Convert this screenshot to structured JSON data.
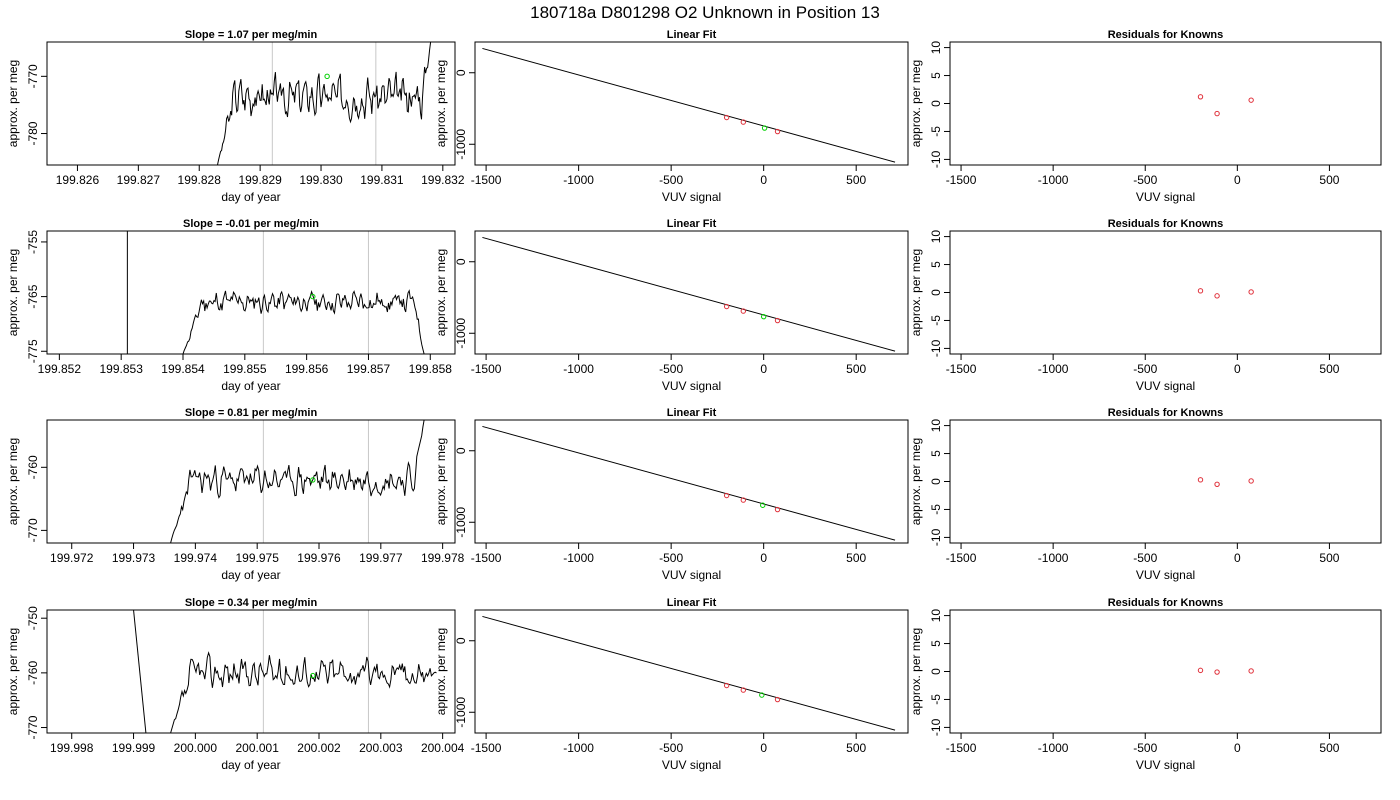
{
  "page_title": "180718a     D801298   O2 Unknown in Position  13",
  "chart_data": [
    {
      "type": "line",
      "panel": "timeseries",
      "title": "Slope =  1.07  per meg/min",
      "xlabel": "day of year",
      "ylabel": "approx. per meg",
      "xlim": [
        199.8255,
        199.8322
      ],
      "ylim": [
        -785.5,
        -764.0
      ],
      "xticks": [
        199.826,
        199.827,
        199.828,
        199.829,
        199.83,
        199.831,
        199.832
      ],
      "xticklabels": [
        "199.826",
        "199.827",
        "199.828",
        "199.829",
        "199.830",
        "199.831",
        "199.832"
      ],
      "yticks": [
        -780,
        -770
      ],
      "yticklabels": [
        "-780",
        "-770"
      ],
      "vlines": [
        199.8292,
        199.8309
      ],
      "series": [
        {
          "x_start": 199.8283,
          "x_end": 199.8318,
          "base": -773.5,
          "start": -785.5,
          "end": -764.0,
          "noise": 2.2,
          "seed": 3
        }
      ],
      "highlight": [
        {
          "x": 199.8301,
          "y": -770.0,
          "color": "#00d000"
        }
      ]
    },
    {
      "type": "scatter",
      "panel": "fit",
      "title": "Linear Fit",
      "xlabel": "VUV signal",
      "ylabel": "approx. per meg",
      "xlim": [
        -1560,
        780
      ],
      "ylim": [
        -1290,
        430
      ],
      "xticks": [
        -1500,
        -1000,
        -500,
        0,
        500
      ],
      "xticklabels": [
        "-1500",
        "-1000",
        "-500",
        "0",
        "500"
      ],
      "yticks": [
        0,
        -1000
      ],
      "yticklabels": [
        "0",
        "-1000"
      ],
      "fit_line": [
        [
          -1520,
          340
        ],
        [
          710,
          -1250
        ]
      ],
      "points": [
        {
          "x": -200,
          "y": -626,
          "color": "#e0303a"
        },
        {
          "x": -110,
          "y": -690,
          "color": "#e0303a"
        },
        {
          "x": 75,
          "y": -822,
          "color": "#e0303a"
        },
        {
          "x": 5,
          "y": -773,
          "color": "#00d000"
        }
      ]
    },
    {
      "type": "scatter",
      "panel": "residuals",
      "title": "Residuals for Knowns",
      "xlabel": "VUV signal",
      "ylabel": "approx. per meg",
      "xlim": [
        -1560,
        780
      ],
      "ylim": [
        -11,
        11
      ],
      "xticks": [
        -1500,
        -1000,
        -500,
        0,
        500
      ],
      "xticklabels": [
        "-1500",
        "-1000",
        "-500",
        "0",
        "500"
      ],
      "yticks": [
        -10,
        -5,
        0,
        5,
        10
      ],
      "yticklabels": [
        "-10",
        "-5",
        "0",
        "5",
        "10"
      ],
      "points": [
        {
          "x": -200,
          "y": 1.2,
          "color": "#e0303a"
        },
        {
          "x": -110,
          "y": -1.8,
          "color": "#e0303a"
        },
        {
          "x": 75,
          "y": 0.6,
          "color": "#e0303a"
        }
      ]
    },
    {
      "type": "line",
      "panel": "timeseries",
      "title": "Slope =  -0.01  per meg/min",
      "xlabel": "day of year",
      "ylabel": "approx. per meg",
      "xlim": [
        199.8518,
        199.8584
      ],
      "ylim": [
        -775.5,
        -753.0
      ],
      "xticks": [
        199.852,
        199.853,
        199.854,
        199.855,
        199.856,
        199.857,
        199.858
      ],
      "xticklabels": [
        "199.852",
        "199.853",
        "199.854",
        "199.855",
        "199.856",
        "199.857",
        "199.858"
      ],
      "yticks": [
        -775,
        -765,
        -755
      ],
      "yticklabels": [
        "-775",
        "-765",
        "-755"
      ],
      "vlines": [
        199.8553,
        199.857
      ],
      "series": [
        {
          "x_start": 199.854,
          "x_end": 199.8579,
          "base": -766.0,
          "start": -775.5,
          "end": -775.5,
          "noise": 1.4,
          "seed": 11
        }
      ],
      "extra_lines": [
        [
          [
            199.8531,
            -753.0
          ],
          [
            199.8531,
            -775.5
          ]
        ]
      ],
      "highlight": [
        {
          "x": 199.8561,
          "y": -765.0,
          "color": "#00d000"
        }
      ]
    },
    {
      "type": "scatter",
      "panel": "fit",
      "title": "Linear Fit",
      "xlabel": "VUV signal",
      "ylabel": "approx. per meg",
      "xlim": [
        -1560,
        780
      ],
      "ylim": [
        -1290,
        430
      ],
      "xticks": [
        -1500,
        -1000,
        -500,
        0,
        500
      ],
      "xticklabels": [
        "-1500",
        "-1000",
        "-500",
        "0",
        "500"
      ],
      "yticks": [
        0,
        -1000
      ],
      "yticklabels": [
        "0",
        "-1000"
      ],
      "fit_line": [
        [
          -1520,
          340
        ],
        [
          710,
          -1250
        ]
      ],
      "points": [
        {
          "x": -200,
          "y": -626,
          "color": "#e0303a"
        },
        {
          "x": -110,
          "y": -690,
          "color": "#e0303a"
        },
        {
          "x": 75,
          "y": -822,
          "color": "#e0303a"
        },
        {
          "x": 0,
          "y": -768,
          "color": "#00d000"
        }
      ]
    },
    {
      "type": "scatter",
      "panel": "residuals",
      "title": "Residuals for Knowns",
      "xlabel": "VUV signal",
      "ylabel": "approx. per meg",
      "xlim": [
        -1560,
        780
      ],
      "ylim": [
        -11,
        11
      ],
      "xticks": [
        -1500,
        -1000,
        -500,
        0,
        500
      ],
      "xticklabels": [
        "-1500",
        "-1000",
        "-500",
        "0",
        "500"
      ],
      "yticks": [
        -10,
        -5,
        0,
        5,
        10
      ],
      "yticklabels": [
        "-10",
        "-5",
        "0",
        "5",
        "10"
      ],
      "points": [
        {
          "x": -200,
          "y": 0.3,
          "color": "#e0303a"
        },
        {
          "x": -110,
          "y": -0.6,
          "color": "#e0303a"
        },
        {
          "x": 75,
          "y": 0.1,
          "color": "#e0303a"
        }
      ]
    },
    {
      "type": "line",
      "panel": "timeseries",
      "title": "Slope =  0.81  per meg/min",
      "xlabel": "day of year",
      "ylabel": "approx. per meg",
      "xlim": [
        199.9716,
        199.9782
      ],
      "ylim": [
        -772.0,
        -752.5
      ],
      "xticks": [
        199.972,
        199.973,
        199.974,
        199.975,
        199.976,
        199.977,
        199.978
      ],
      "xticklabels": [
        "199.972",
        "199.973",
        "199.974",
        "199.975",
        "199.976",
        "199.977",
        "199.978"
      ],
      "yticks": [
        -770,
        -760
      ],
      "yticklabels": [
        "-770",
        "-760"
      ],
      "vlines": [
        199.9751,
        199.9768
      ],
      "series": [
        {
          "x_start": 199.9736,
          "x_end": 199.9777,
          "base": -762.0,
          "start": -772.0,
          "end": -752.5,
          "noise": 1.5,
          "seed": 23
        }
      ],
      "highlight": [
        {
          "x": 199.9759,
          "y": -762.0,
          "color": "#00d000"
        }
      ]
    },
    {
      "type": "scatter",
      "panel": "fit",
      "title": "Linear Fit",
      "xlabel": "VUV signal",
      "ylabel": "approx. per meg",
      "xlim": [
        -1560,
        780
      ],
      "ylim": [
        -1290,
        430
      ],
      "xticks": [
        -1500,
        -1000,
        -500,
        0,
        500
      ],
      "xticklabels": [
        "-1500",
        "-1000",
        "-500",
        "0",
        "500"
      ],
      "yticks": [
        0,
        -1000
      ],
      "yticklabels": [
        "0",
        "-1000"
      ],
      "fit_line": [
        [
          -1520,
          340
        ],
        [
          710,
          -1250
        ]
      ],
      "points": [
        {
          "x": -200,
          "y": -626,
          "color": "#e0303a"
        },
        {
          "x": -110,
          "y": -690,
          "color": "#e0303a"
        },
        {
          "x": 75,
          "y": -822,
          "color": "#e0303a"
        },
        {
          "x": -5,
          "y": -762,
          "color": "#00d000"
        }
      ]
    },
    {
      "type": "scatter",
      "panel": "residuals",
      "title": "Residuals for Knowns",
      "xlabel": "VUV signal",
      "ylabel": "approx. per meg",
      "xlim": [
        -1560,
        780
      ],
      "ylim": [
        -11,
        11
      ],
      "xticks": [
        -1500,
        -1000,
        -500,
        0,
        500
      ],
      "xticklabels": [
        "-1500",
        "-1000",
        "-500",
        "0",
        "500"
      ],
      "yticks": [
        -10,
        -5,
        0,
        5,
        10
      ],
      "yticklabels": [
        "-10",
        "-5",
        "0",
        "5",
        "10"
      ],
      "points": [
        {
          "x": -200,
          "y": 0.3,
          "color": "#e0303a"
        },
        {
          "x": -110,
          "y": -0.5,
          "color": "#e0303a"
        },
        {
          "x": 75,
          "y": 0.1,
          "color": "#e0303a"
        }
      ]
    },
    {
      "type": "line",
      "panel": "timeseries",
      "title": "Slope =  0.34  per meg/min",
      "xlabel": "day of year",
      "ylabel": "approx. per meg",
      "xlim": [
        199.9976,
        200.0042
      ],
      "ylim": [
        -771.0,
        -748.5
      ],
      "xticks": [
        199.998,
        199.999,
        200.0,
        200.001,
        200.002,
        200.003,
        200.004
      ],
      "xticklabels": [
        "199.998",
        "199.999",
        "200.000",
        "200.001",
        "200.002",
        "200.003",
        "200.004"
      ],
      "yticks": [
        -770,
        -760,
        -750
      ],
      "yticklabels": [
        "-770",
        "-760",
        "-750"
      ],
      "vlines": [
        200.0011,
        200.0028
      ],
      "series": [
        {
          "x_start": 199.9996,
          "x_end": 200.0039,
          "base": -760.0,
          "start": -771.0,
          "end": -760.0,
          "noise": 1.9,
          "seed": 37
        }
      ],
      "extra_lines": [
        [
          [
            199.999,
            -748.5
          ],
          [
            199.9992,
            -771.0
          ]
        ]
      ],
      "highlight": [
        {
          "x": 200.0019,
          "y": -760.5,
          "color": "#00d000"
        }
      ]
    },
    {
      "type": "scatter",
      "panel": "fit",
      "title": "Linear Fit",
      "xlabel": "VUV signal",
      "ylabel": "approx. per meg",
      "xlim": [
        -1560,
        780
      ],
      "ylim": [
        -1290,
        430
      ],
      "xticks": [
        -1500,
        -1000,
        -500,
        0,
        500
      ],
      "xticklabels": [
        "-1500",
        "-1000",
        "-500",
        "0",
        "500"
      ],
      "yticks": [
        0,
        -1000
      ],
      "yticklabels": [
        "0",
        "-1000"
      ],
      "fit_line": [
        [
          -1520,
          340
        ],
        [
          710,
          -1250
        ]
      ],
      "points": [
        {
          "x": -200,
          "y": -626,
          "color": "#e0303a"
        },
        {
          "x": -110,
          "y": -690,
          "color": "#e0303a"
        },
        {
          "x": 75,
          "y": -822,
          "color": "#e0303a"
        },
        {
          "x": -10,
          "y": -760,
          "color": "#00d000"
        }
      ]
    },
    {
      "type": "scatter",
      "panel": "residuals",
      "title": "Residuals for Knowns",
      "xlabel": "VUV signal",
      "ylabel": "approx. per meg",
      "xlim": [
        -1560,
        780
      ],
      "ylim": [
        -11,
        11
      ],
      "xticks": [
        -1500,
        -1000,
        -500,
        0,
        500
      ],
      "xticklabels": [
        "-1500",
        "-1000",
        "-500",
        "0",
        "500"
      ],
      "yticks": [
        -10,
        -5,
        0,
        5,
        10
      ],
      "yticklabels": [
        "-10",
        "-5",
        "0",
        "5",
        "10"
      ],
      "points": [
        {
          "x": -200,
          "y": 0.2,
          "color": "#e0303a"
        },
        {
          "x": -110,
          "y": -0.1,
          "color": "#e0303a"
        },
        {
          "x": 75,
          "y": 0.1,
          "color": "#e0303a"
        }
      ]
    }
  ]
}
